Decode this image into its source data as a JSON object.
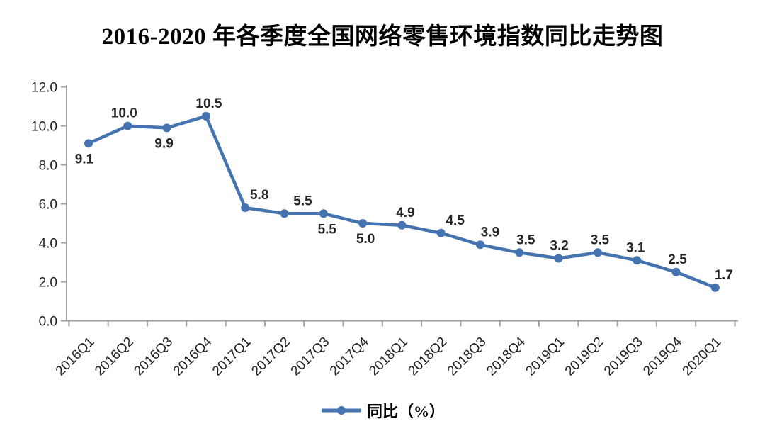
{
  "title": "2016-2020 年各季度全国网络零售环境指数同比走势图",
  "legend": {
    "label": "同比（%）"
  },
  "chart_data": {
    "type": "line",
    "title": "2016-2020 年各季度全国网络零售环境指数同比走势图",
    "categories": [
      "2016Q1",
      "2016Q2",
      "2016Q3",
      "2016Q4",
      "2017Q1",
      "2017Q2",
      "2017Q3",
      "2017Q4",
      "2018Q1",
      "2018Q2",
      "2018Q3",
      "2018Q4",
      "2019Q1",
      "2019Q2",
      "2019Q3",
      "2019Q4",
      "2020Q1"
    ],
    "series": [
      {
        "name": "同比（%）",
        "values": [
          9.1,
          10.0,
          9.9,
          10.5,
          5.8,
          5.5,
          5.5,
          5.0,
          4.9,
          4.5,
          3.9,
          3.5,
          3.2,
          3.5,
          3.1,
          2.5,
          1.7
        ]
      }
    ],
    "xlabel": "",
    "ylabel": "",
    "ylim": [
      0,
      12
    ],
    "y_tick_step": 2,
    "y_tick_labels": [
      "0.0",
      "2.0",
      "4.0",
      "6.0",
      "8.0",
      "10.0",
      "12.0"
    ],
    "grid": "off",
    "legend_position": "bottom-center",
    "data_labels_shown": true,
    "data_label_decimals": 1,
    "data_label_positions": [
      "below",
      "above",
      "below",
      "above",
      "above",
      "above",
      "below",
      "below",
      "above",
      "above",
      "above",
      "above",
      "above",
      "above",
      "above",
      "above",
      "above"
    ],
    "data_label_dx": [
      -6,
      -5,
      -4,
      4,
      20,
      26,
      5,
      4,
      5,
      20,
      14,
      9,
      1,
      3,
      -2,
      2,
      12
    ],
    "x_label_rotation_deg": -45,
    "marker": "circle",
    "colors": {
      "line": "#4473b0",
      "marker": "#4473b0",
      "axis": "#9e9e9e",
      "tick_text": "#1f1f1f",
      "data_label_text": "#262626",
      "background": "#ffffff"
    }
  }
}
